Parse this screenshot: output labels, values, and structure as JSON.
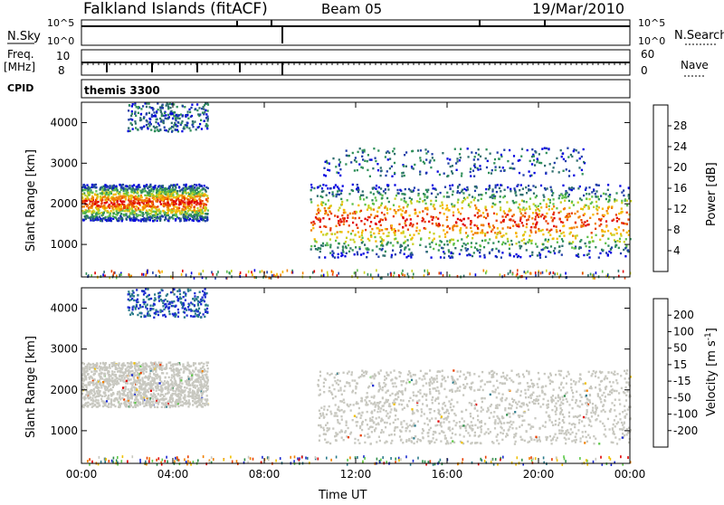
{
  "header": {
    "station": "Falkland Islands (fitACF)",
    "beam": "Beam 05",
    "date": "19/Mar/2010"
  },
  "status_panels": {
    "nsky_label": "N.Sky",
    "nsky_ticks": [
      "10^5",
      "10^0"
    ],
    "nsearch_label": "N.Search",
    "nsearch_ticks": [
      "10^5",
      "10^0"
    ],
    "freq_label": "Freq.",
    "freq_unit": "[MHz]",
    "freq_ticks": [
      "10",
      "8"
    ],
    "nave_label": "Nave",
    "nave_ticks": [
      "60",
      "0"
    ],
    "cpid_label": "CPID",
    "cpid_value": "themis 3300"
  },
  "chart_data": [
    {
      "type": "heatmap",
      "name": "power",
      "ylabel": "Slant Range [km]",
      "xlabel": "Time UT",
      "xlim": [
        0,
        24
      ],
      "ylim": [
        200,
        4500
      ],
      "y_ticks": [
        "1000",
        "2000",
        "3000",
        "4000"
      ],
      "x_ticks": [
        "00:00",
        "04:00",
        "08:00",
        "12:00",
        "16:00",
        "20:00",
        "00:00"
      ],
      "colorbar": {
        "label": "Power [dB]",
        "ticks": [
          "4",
          "8",
          "12",
          "16",
          "20",
          "24",
          "28"
        ],
        "colors": [
          "#0000e0",
          "#1f3ea8",
          "#2e6e6e",
          "#2f8f5a",
          "#5ec04a",
          "#c8d020",
          "#f6b800",
          "#f08000",
          "#e84000",
          "#e00000"
        ]
      },
      "regions": [
        {
          "t0": 0.0,
          "t1": 5.5,
          "r0": 1600,
          "r1": 2500,
          "value": "strong"
        },
        {
          "t0": 2.0,
          "t1": 5.5,
          "r0": 3800,
          "r1": 4500,
          "value": "weak"
        },
        {
          "t0": 10.0,
          "t1": 24.0,
          "r0": 700,
          "r1": 2500,
          "value": "strong"
        },
        {
          "t0": 10.5,
          "t1": 22.0,
          "r0": 2700,
          "r1": 3400,
          "value": "weak"
        }
      ]
    },
    {
      "type": "heatmap",
      "name": "velocity",
      "ylabel": "Slant Range [km]",
      "xlabel": "Time UT",
      "xlim": [
        0,
        24
      ],
      "ylim": [
        200,
        4500
      ],
      "y_ticks": [
        "1000",
        "2000",
        "3000",
        "4000"
      ],
      "x_ticks": [
        "00:00",
        "04:00",
        "08:00",
        "12:00",
        "16:00",
        "20:00",
        "00:00"
      ],
      "colorbar": {
        "label": "Velocity [m s^-1]",
        "ticks": [
          "200",
          "100",
          "50",
          "15",
          "-15",
          "-50",
          "-100",
          "-200"
        ],
        "colors": [
          "#1a2ad0",
          "#2a7a8a",
          "#2f8f4a",
          "#5ec84a",
          "#c8c8c0",
          "#f0c000",
          "#f08000",
          "#e84000",
          "#e00000"
        ]
      },
      "regions": [
        {
          "t0": 0.0,
          "t1": 5.5,
          "r0": 1600,
          "r1": 2700,
          "value": "ground"
        },
        {
          "t0": 10.3,
          "t1": 24.0,
          "r0": 700,
          "r1": 2500,
          "value": "ground"
        },
        {
          "t0": 2.0,
          "t1": 5.5,
          "r0": 3800,
          "r1": 4500,
          "value": "negative"
        }
      ]
    }
  ]
}
